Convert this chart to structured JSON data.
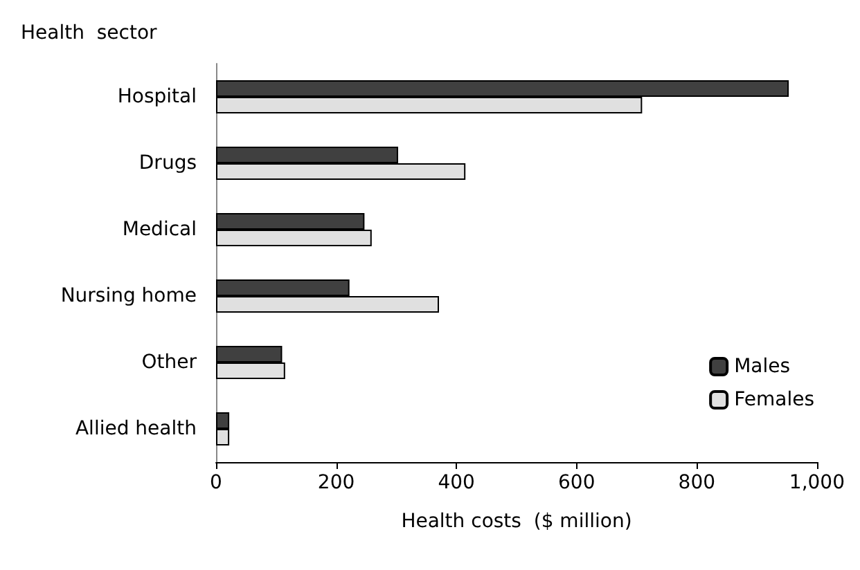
{
  "chart_data": {
    "type": "bar",
    "orientation": "horizontal",
    "ylabel": "Health  sector",
    "xlabel": "Health costs  ($ million)",
    "categories": [
      "Hospital",
      "Drugs",
      "Medical",
      "Nursing home",
      "Other",
      "Allied health"
    ],
    "series": [
      {
        "name": "Males",
        "color": "#404040",
        "values": [
          953,
          303,
          247,
          222,
          110,
          22
        ]
      },
      {
        "name": "Females",
        "color": "#e0e0e0",
        "values": [
          709,
          415,
          259,
          371,
          115,
          22
        ]
      }
    ],
    "xlim": [
      0,
      1000
    ],
    "xticks": [
      0,
      200,
      400,
      600,
      {
        "value": 800,
        "label": "800"
      },
      {
        "value": 1000,
        "label": "1,000"
      }
    ],
    "grid": false,
    "legend": "right"
  }
}
